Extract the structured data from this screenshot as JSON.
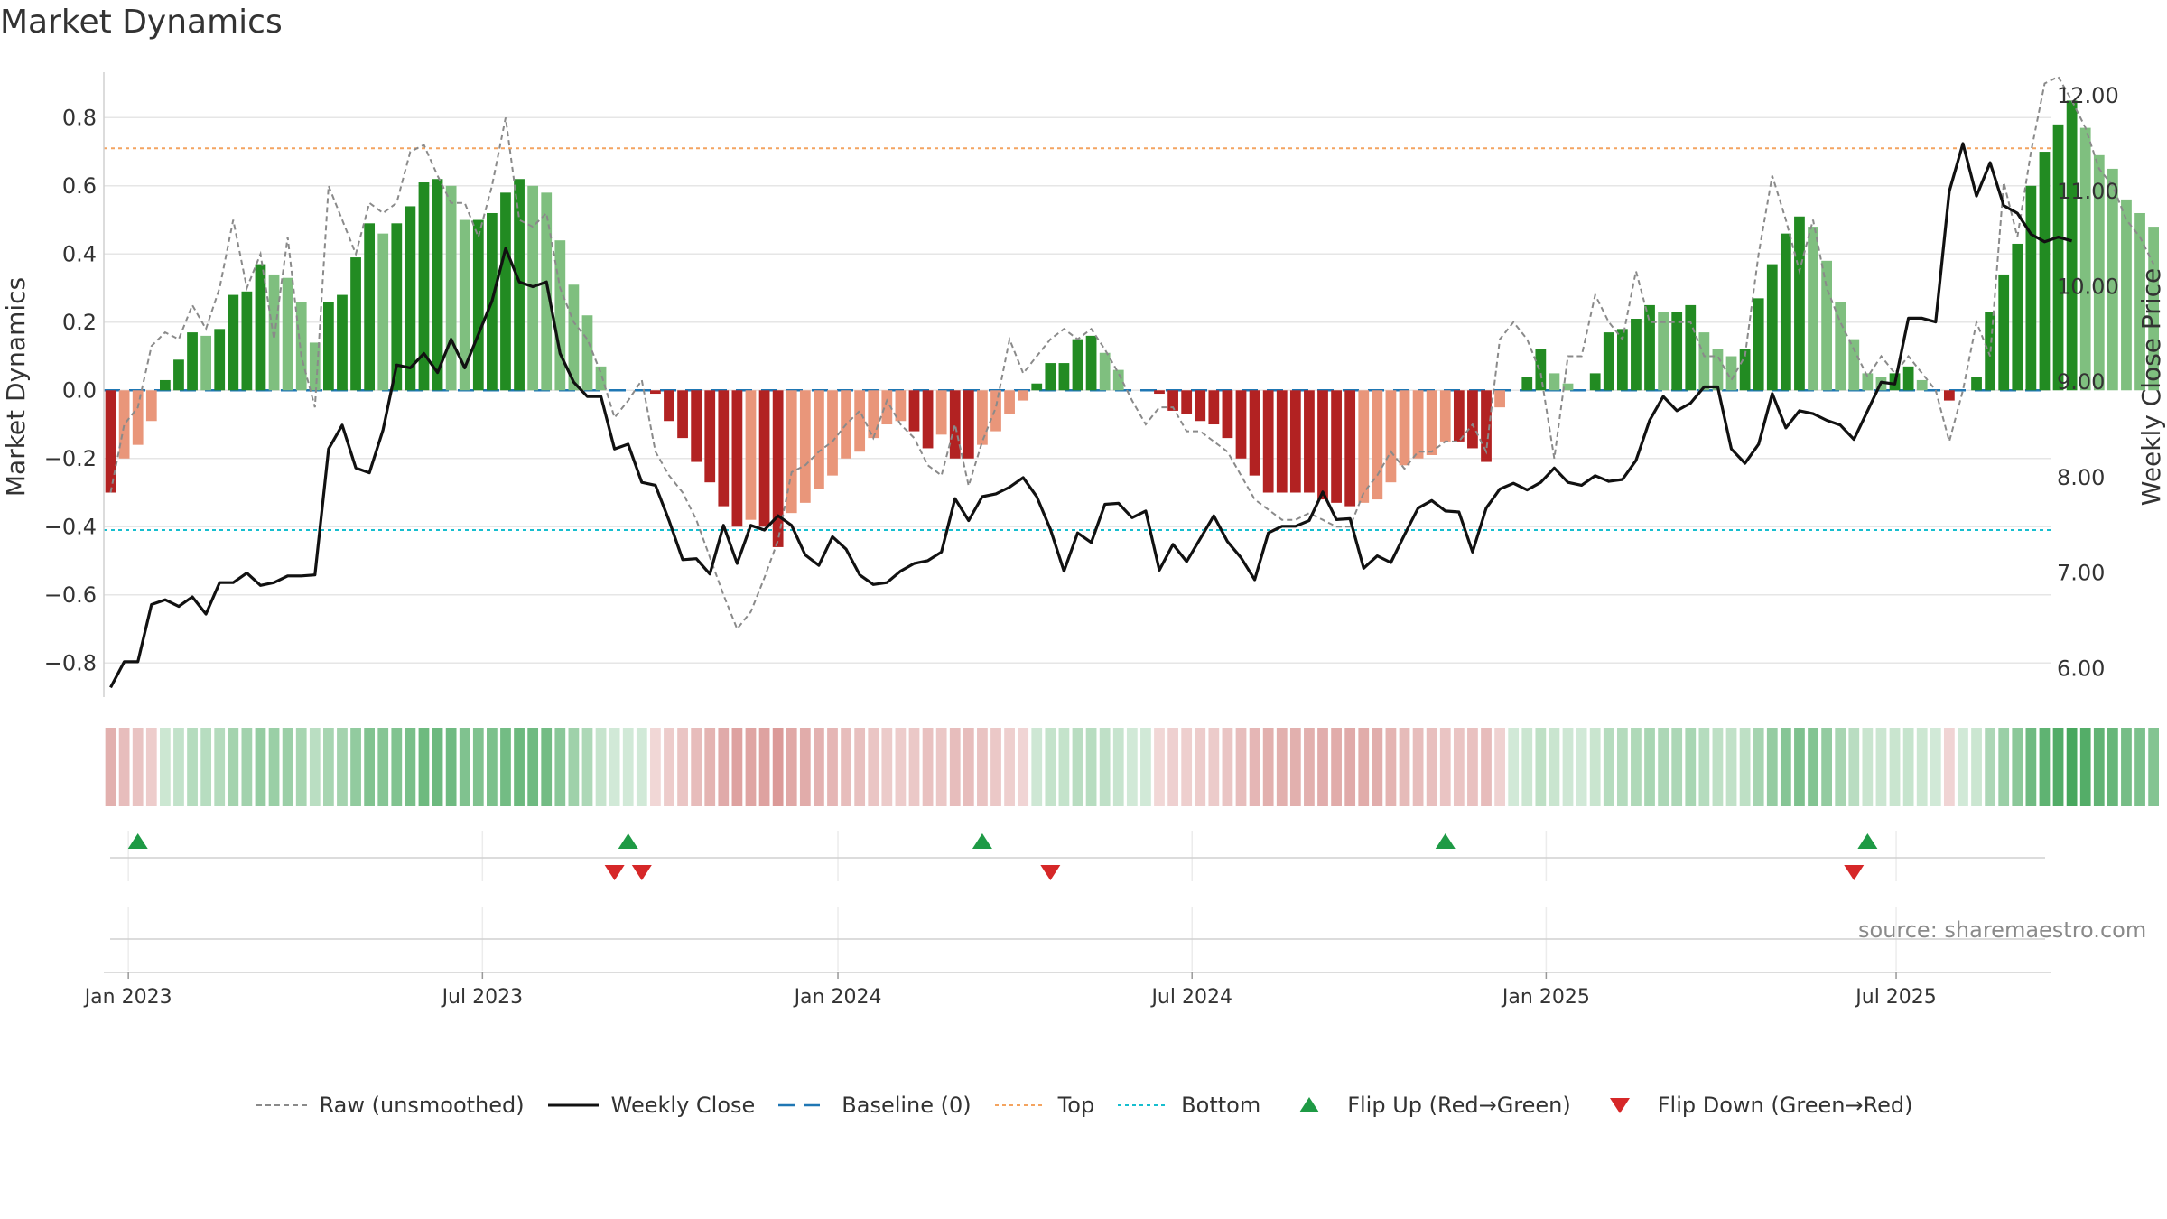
{
  "title": "Market Dynamics",
  "source": "source: sharemaestro.com",
  "colors": {
    "green_strong": "#228B22",
    "green_light": "#7FBF7F",
    "red_strong": "#B22222",
    "red_light": "#E9967A",
    "raw_line": "#8a8a8a",
    "close_line": "#111111",
    "baseline": "#1f77b4",
    "top": "#F4A460",
    "bottom": "#17becf",
    "flip_up": "#1e9a45",
    "flip_down": "#d62728",
    "grid": "#e6e6e6"
  },
  "legend": [
    {
      "key": "raw",
      "label": "Raw (unsmoothed)",
      "style": "dashed-gray"
    },
    {
      "key": "close",
      "label": "Weekly Close",
      "style": "solid-black"
    },
    {
      "key": "baseline",
      "label": "Baseline (0)",
      "style": "dashed-blue"
    },
    {
      "key": "top",
      "label": "Top",
      "style": "dotted-orange"
    },
    {
      "key": "bottom",
      "label": "Bottom",
      "style": "dotted-cyan"
    },
    {
      "key": "flip_up",
      "label": "Flip Up (Red→Green)",
      "style": "triangle-up-green"
    },
    {
      "key": "flip_down",
      "label": "Flip Down (Green→Red)",
      "style": "triangle-down-red"
    }
  ],
  "chart_data": {
    "type": "bar",
    "title": "Market Dynamics",
    "ylabel": "Market Dynamics",
    "y2label": "Weekly Close Price",
    "ylim": [
      -0.9,
      0.92
    ],
    "y2lim": [
      5.7,
      12.2
    ],
    "yticks": [
      -0.8,
      -0.6,
      -0.4,
      -0.2,
      0,
      0.2,
      0.4,
      0.6,
      0.8
    ],
    "y2ticks": [
      6.0,
      7.0,
      8.0,
      9.0,
      10.0,
      11.0,
      12.0
    ],
    "x_start_date": "2022-12-23",
    "xticks": [
      "Jan 2023",
      "Jul 2023",
      "Jan 2024",
      "Jul 2024",
      "Jan 2025",
      "Jul 2025"
    ],
    "xtick_positions_weeks": [
      1.3,
      27.3,
      53.4,
      79.4,
      105.4,
      131.1
    ],
    "x_range_weeks": [
      -0.5,
      142.5
    ],
    "top_threshold": 0.71,
    "bottom_threshold": -0.41,
    "baseline": 0,
    "smoothed": [
      -0.3,
      -0.2,
      -0.16,
      -0.09,
      0.03,
      0.09,
      0.17,
      0.16,
      0.18,
      0.28,
      0.29,
      0.37,
      0.34,
      0.33,
      0.26,
      0.14,
      0.26,
      0.28,
      0.39,
      0.49,
      0.46,
      0.49,
      0.54,
      0.61,
      0.62,
      0.6,
      0.5,
      0.5,
      0.52,
      0.58,
      0.62,
      0.6,
      0.58,
      0.44,
      0.31,
      0.22,
      0.07,
      0.0,
      0.0,
      0.0,
      -0.01,
      -0.09,
      -0.14,
      -0.21,
      -0.27,
      -0.34,
      -0.4,
      -0.38,
      -0.4,
      -0.46,
      -0.36,
      -0.33,
      -0.29,
      -0.25,
      -0.2,
      -0.18,
      -0.14,
      -0.1,
      -0.09,
      -0.12,
      -0.17,
      -0.13,
      -0.2,
      -0.2,
      -0.16,
      -0.12,
      -0.07,
      -0.03,
      0.02,
      0.08,
      0.08,
      0.15,
      0.16,
      0.11,
      0.06,
      0.0,
      0.0,
      -0.01,
      -0.06,
      -0.07,
      -0.09,
      -0.1,
      -0.14,
      -0.2,
      -0.25,
      -0.3,
      -0.3,
      -0.3,
      -0.3,
      -0.32,
      -0.33,
      -0.34,
      -0.33,
      -0.32,
      -0.27,
      -0.22,
      -0.2,
      -0.19,
      -0.15,
      -0.15,
      -0.17,
      -0.21,
      -0.05,
      0.0,
      0.04,
      0.12,
      0.05,
      0.02,
      0.0,
      0.05,
      0.17,
      0.18,
      0.21,
      0.25,
      0.23,
      0.23,
      0.25,
      0.17,
      0.12,
      0.1,
      0.12,
      0.27,
      0.37,
      0.46,
      0.51,
      0.48,
      0.38,
      0.26,
      0.15,
      0.05,
      0.04,
      0.05,
      0.07,
      0.03,
      0.0,
      -0.03,
      0.0,
      0.04,
      0.23,
      0.34,
      0.43,
      0.6,
      0.7,
      0.78,
      0.85,
      0.77,
      0.69,
      0.65,
      0.56,
      0.52,
      0.48
    ],
    "raw": [
      -0.3,
      -0.1,
      -0.05,
      0.13,
      0.17,
      0.15,
      0.25,
      0.18,
      0.3,
      0.5,
      0.3,
      0.4,
      0.15,
      0.45,
      0.1,
      -0.05,
      0.6,
      0.5,
      0.4,
      0.55,
      0.52,
      0.55,
      0.7,
      0.72,
      0.63,
      0.55,
      0.55,
      0.45,
      0.6,
      0.8,
      0.5,
      0.48,
      0.52,
      0.3,
      0.2,
      0.15,
      0.05,
      -0.08,
      -0.03,
      0.03,
      -0.18,
      -0.25,
      -0.3,
      -0.38,
      -0.49,
      -0.6,
      -0.7,
      -0.65,
      -0.55,
      -0.44,
      -0.24,
      -0.22,
      -0.18,
      -0.15,
      -0.1,
      -0.06,
      -0.14,
      -0.03,
      -0.1,
      -0.14,
      -0.22,
      -0.25,
      -0.1,
      -0.28,
      -0.15,
      -0.05,
      0.15,
      0.05,
      0.1,
      0.15,
      0.18,
      0.15,
      0.18,
      0.12,
      0.05,
      -0.03,
      -0.1,
      -0.05,
      -0.05,
      -0.12,
      -0.12,
      -0.15,
      -0.18,
      -0.25,
      -0.32,
      -0.35,
      -0.38,
      -0.38,
      -0.36,
      -0.38,
      -0.4,
      -0.4,
      -0.3,
      -0.25,
      -0.18,
      -0.23,
      -0.18,
      -0.18,
      -0.15,
      -0.15,
      -0.1,
      -0.18,
      0.15,
      0.2,
      0.15,
      0.05,
      -0.2,
      0.1,
      0.1,
      0.28,
      0.2,
      0.15,
      0.35,
      0.2,
      0.2,
      0.2,
      0.2,
      0.1,
      0.1,
      0.03,
      0.1,
      0.4,
      0.63,
      0.5,
      0.35,
      0.5,
      0.3,
      0.2,
      0.12,
      0.04,
      0.1,
      0.05,
      0.1,
      0.05,
      0.0,
      -0.15,
      0.0,
      0.2,
      0.1,
      0.61,
      0.45,
      0.7,
      0.9,
      0.92,
      0.85,
      0.77,
      0.65,
      0.6,
      0.5,
      0.45,
      0.37
    ],
    "close": [
      5.8,
      6.07,
      6.07,
      6.67,
      6.72,
      6.65,
      6.75,
      6.57,
      6.9,
      6.9,
      7.0,
      6.87,
      6.9,
      6.97,
      6.97,
      6.98,
      8.3,
      8.55,
      8.1,
      8.05,
      8.5,
      9.18,
      9.15,
      9.3,
      9.1,
      9.45,
      9.15,
      9.5,
      9.85,
      10.4,
      10.05,
      10.0,
      10.05,
      9.3,
      9.0,
      8.85,
      8.85,
      8.3,
      8.35,
      7.95,
      7.92,
      7.55,
      7.14,
      7.15,
      6.99,
      7.5,
      7.1,
      7.5,
      7.45,
      7.6,
      7.5,
      7.19,
      7.08,
      7.38,
      7.25,
      6.98,
      6.88,
      6.9,
      7.02,
      7.1,
      7.13,
      7.22,
      7.78,
      7.55,
      7.8,
      7.83,
      7.9,
      8.0,
      7.8,
      7.46,
      7.02,
      7.42,
      7.32,
      7.72,
      7.73,
      7.58,
      7.65,
      7.03,
      7.3,
      7.12,
      7.36,
      7.6,
      7.33,
      7.16,
      6.93,
      7.42,
      7.49,
      7.49,
      7.55,
      7.85,
      7.56,
      7.57,
      7.05,
      7.18,
      7.11,
      7.4,
      7.68,
      7.76,
      7.65,
      7.64,
      7.22,
      7.68,
      7.88,
      7.94,
      7.87,
      7.95,
      8.1,
      7.95,
      7.92,
      8.02,
      7.96,
      7.98,
      8.18,
      8.6,
      8.85,
      8.7,
      8.78,
      8.95,
      8.95,
      8.3,
      8.15,
      8.35,
      8.88,
      8.52,
      8.7,
      8.67,
      8.6,
      8.55,
      8.4,
      8.7,
      9.0,
      8.98,
      9.67,
      9.67,
      9.63,
      11.0,
      11.5,
      10.95,
      11.3,
      10.85,
      10.77,
      10.55,
      10.47,
      10.52,
      10.48
    ],
    "flips_up_weeks": [
      2,
      38,
      64,
      98,
      129
    ],
    "flips_down_weeks": [
      37,
      39,
      69,
      128
    ],
    "legend_position": "bottom-center",
    "grid": true
  }
}
